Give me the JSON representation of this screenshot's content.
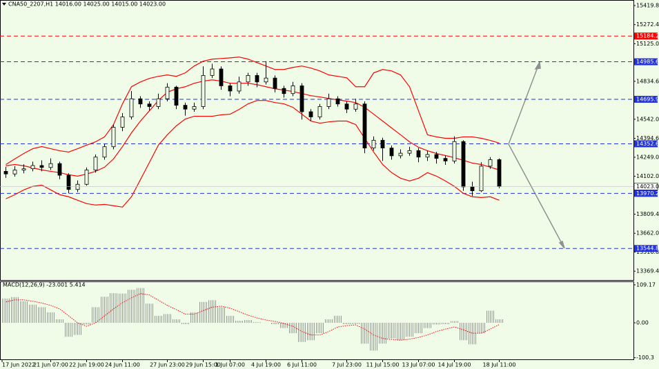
{
  "chart_data": [
    {
      "type": "candlestick",
      "title": "CNA50_2207,H1  14016.00 14025.00 14015.00 14023.00",
      "categories": [
        "17 Jun 2022",
        null,
        null,
        null,
        null,
        "21 Jun 07:00",
        null,
        null,
        null,
        "22 Jun 19:00",
        null,
        null,
        null,
        "24 Jun 11:00",
        null,
        null,
        null,
        null,
        "27 Jun 23:00",
        null,
        null,
        null,
        "29 Jun 15:00",
        null,
        null,
        "1 Jul 07:00",
        null,
        null,
        null,
        "4 Jul 19:00",
        null,
        null,
        null,
        "6 Jul 11:00",
        null,
        null,
        null,
        null,
        "7 Jul 23:00",
        null,
        null,
        null,
        "11 Jul 15:00",
        null,
        null,
        null,
        "13 Jul 07:00",
        null,
        null,
        null,
        "14 Jul 19:00",
        null,
        null,
        null,
        null,
        "18 Jul 11:00"
      ],
      "open": [
        14140,
        14120,
        14150,
        14160,
        14185,
        14170,
        14200,
        14110,
        14000,
        14040,
        14150,
        14250,
        14330,
        14480,
        14560,
        14700,
        14660,
        14640,
        14700,
        14790,
        14650,
        14620,
        14640,
        14880,
        14930,
        14800,
        14760,
        14830,
        14880,
        14830,
        14860,
        14780,
        14740,
        14800,
        14600,
        14560,
        14640,
        14700,
        14660,
        14620,
        14660,
        14320,
        14380,
        14320,
        14260,
        14280,
        14300,
        14250,
        14270,
        14240,
        14220,
        14370,
        14020,
        13990,
        14180,
        14230
      ],
      "high": [
        14175,
        14180,
        14195,
        14215,
        14225,
        14240,
        14215,
        14125,
        14070,
        14170,
        14270,
        14350,
        14500,
        14590,
        14760,
        14720,
        14680,
        14740,
        14820,
        14800,
        14670,
        14670,
        14950,
        14970,
        14950,
        14820,
        14870,
        14900,
        14900,
        14990,
        14880,
        14800,
        14830,
        14820,
        14620,
        14660,
        14740,
        14720,
        14680,
        14700,
        14680,
        14410,
        14400,
        14340,
        14310,
        14330,
        14320,
        14300,
        14290,
        14260,
        14410,
        14380,
        14060,
        14210,
        14250,
        14240
      ],
      "low": [
        14090,
        14100,
        14125,
        14140,
        14140,
        14150,
        14080,
        13970,
        13980,
        14030,
        14130,
        14230,
        14310,
        14450,
        14540,
        14630,
        14610,
        14620,
        14680,
        14620,
        14570,
        14600,
        14620,
        14860,
        14770,
        14720,
        14740,
        14800,
        14790,
        14810,
        14750,
        14710,
        14720,
        14540,
        14530,
        14540,
        14620,
        14640,
        14590,
        14600,
        14280,
        14300,
        14220,
        14230,
        14240,
        14260,
        14210,
        14220,
        14200,
        14190,
        14200,
        13990,
        13950,
        13980,
        14160,
        14010
      ],
      "close": [
        14120,
        14150,
        14160,
        14185,
        14170,
        14200,
        14110,
        14000,
        14040,
        14150,
        14250,
        14330,
        14480,
        14560,
        14700,
        14660,
        14640,
        14700,
        14790,
        14650,
        14620,
        14640,
        14880,
        14930,
        14800,
        14760,
        14830,
        14880,
        14830,
        14860,
        14780,
        14740,
        14800,
        14600,
        14560,
        14640,
        14700,
        14660,
        14620,
        14660,
        14320,
        14380,
        14320,
        14260,
        14280,
        14300,
        14250,
        14270,
        14240,
        14220,
        14370,
        14020,
        13990,
        14180,
        14230,
        14023
      ],
      "up_color": "#f0fce8",
      "down_color": "#000000",
      "series": [
        {
          "color": "#ff0000",
          "values": [
            14193,
            14236,
            14278,
            14315,
            14331,
            14315,
            14299,
            14289,
            14315,
            14342,
            14368,
            14406,
            14501,
            14661,
            14793,
            14830,
            14857,
            14873,
            14884,
            14873,
            14900,
            14953,
            14990,
            15006,
            15011,
            15016,
            15022,
            15006,
            14979,
            14953,
            14926,
            14926,
            14942,
            14953,
            14937,
            14915,
            14884,
            14873,
            14862,
            14793,
            14793,
            14900,
            14926,
            14915,
            14884,
            14793,
            14607,
            14422,
            14406,
            14395,
            14395,
            14406,
            14406,
            14395,
            14379,
            14358
          ]
        },
        {
          "color": "#ff0000",
          "values": [
            14183,
            14193,
            14183,
            14167,
            14151,
            14140,
            14130,
            14114,
            14103,
            14119,
            14140,
            14172,
            14236,
            14331,
            14437,
            14528,
            14607,
            14687,
            14751,
            14777,
            14793,
            14820,
            14836,
            14846,
            14836,
            14820,
            14820,
            14820,
            14809,
            14793,
            14777,
            14767,
            14756,
            14740,
            14724,
            14714,
            14703,
            14692,
            14682,
            14671,
            14634,
            14581,
            14528,
            14475,
            14422,
            14368,
            14326,
            14299,
            14278,
            14262,
            14246,
            14225,
            14204,
            14193,
            14172,
            14151
          ]
        },
        {
          "color": "#ff0000",
          "values": [
            13928,
            13960,
            13997,
            14024,
            14034,
            13997,
            13960,
            13944,
            13917,
            13891,
            13880,
            13885,
            13875,
            13864,
            13944,
            14076,
            14209,
            14342,
            14422,
            14491,
            14544,
            14565,
            14565,
            14565,
            14576,
            14581,
            14618,
            14661,
            14687,
            14687,
            14671,
            14661,
            14634,
            14581,
            14528,
            14512,
            14522,
            14528,
            14528,
            14501,
            14395,
            14289,
            14193,
            14130,
            14087,
            14066,
            14087,
            14130,
            14103,
            14066,
            14024,
            13970,
            13944,
            13938,
            13944,
            13917
          ]
        }
      ],
      "levels": [
        {
          "value": 15184.26,
          "color": "#ff0000"
        },
        {
          "value": 14985.62,
          "color": "#2233dd"
        },
        {
          "value": 14695.99,
          "color": "#2233dd"
        },
        {
          "value": 14352.61,
          "color": "#2233dd"
        },
        {
          "value": 13970.21,
          "color": "#2233dd"
        },
        {
          "value": 13544.84,
          "color": "#2233dd"
        }
      ],
      "last_price": {
        "value": 14023,
        "label": "14023.00"
      },
      "ylim": [
        13296,
        15457
      ],
      "yticks": [
        {
          "value": 15419.8,
          "label": "15419.80"
        },
        {
          "value": 15272.4,
          "label": "15272.40"
        },
        {
          "value": 15125,
          "label": "15125.00"
        },
        {
          "value": 14834.6,
          "label": "14834.60"
        },
        {
          "value": 14542,
          "label": "14542.00"
        },
        {
          "value": 14394.6,
          "label": "14394.60"
        },
        {
          "value": 14249,
          "label": "14249.00"
        },
        {
          "value": 14102,
          "label": "14102.00"
        },
        {
          "value": 13809.4,
          "label": "13809.40"
        },
        {
          "value": 13662,
          "label": "13662.00"
        },
        {
          "value": 13516.8,
          "label": "13516.80"
        },
        {
          "value": 13369.4,
          "label": "13369.40"
        }
      ]
    },
    {
      "type": "macd",
      "title": "MACD(12,26,9) -23.001 5.414",
      "series": [
        {
          "color": "#808080",
          "values": [
            70,
            74,
            62,
            52,
            45,
            30,
            10,
            -40,
            -35,
            -5,
            45,
            75,
            85,
            84,
            95,
            100,
            55,
            20,
            25,
            10,
            -4,
            30,
            60,
            65,
            45,
            20,
            6,
            8,
            2,
            0,
            -4,
            -15,
            -30,
            -55,
            -50,
            -30,
            10,
            20,
            -4,
            -4,
            -60,
            -80,
            -60,
            -45,
            -50,
            -40,
            -30,
            -15,
            -5,
            -4,
            5,
            -50,
            -62,
            -30,
            35,
            10
          ]
        },
        {
          "color": "#ff0000",
          "values": [
            60,
            66,
            66,
            62,
            57,
            50,
            40,
            20,
            0,
            -10,
            0,
            20,
            40,
            58,
            72,
            84,
            80,
            65,
            50,
            38,
            25,
            25,
            35,
            45,
            48,
            42,
            32,
            22,
            14,
            8,
            4,
            -2,
            -10,
            -25,
            -35,
            -35,
            -25,
            -12,
            -8,
            -6,
            -18,
            -35,
            -45,
            -48,
            -50,
            -47,
            -42,
            -35,
            -25,
            -18,
            -12,
            -20,
            -30,
            -30,
            -18,
            -5
          ]
        }
      ],
      "ylim": [
        -105,
        117
      ],
      "yticks": [
        109.17,
        {
          "value": 0,
          "label": "0.00"
        },
        -100.3
      ]
    }
  ]
}
